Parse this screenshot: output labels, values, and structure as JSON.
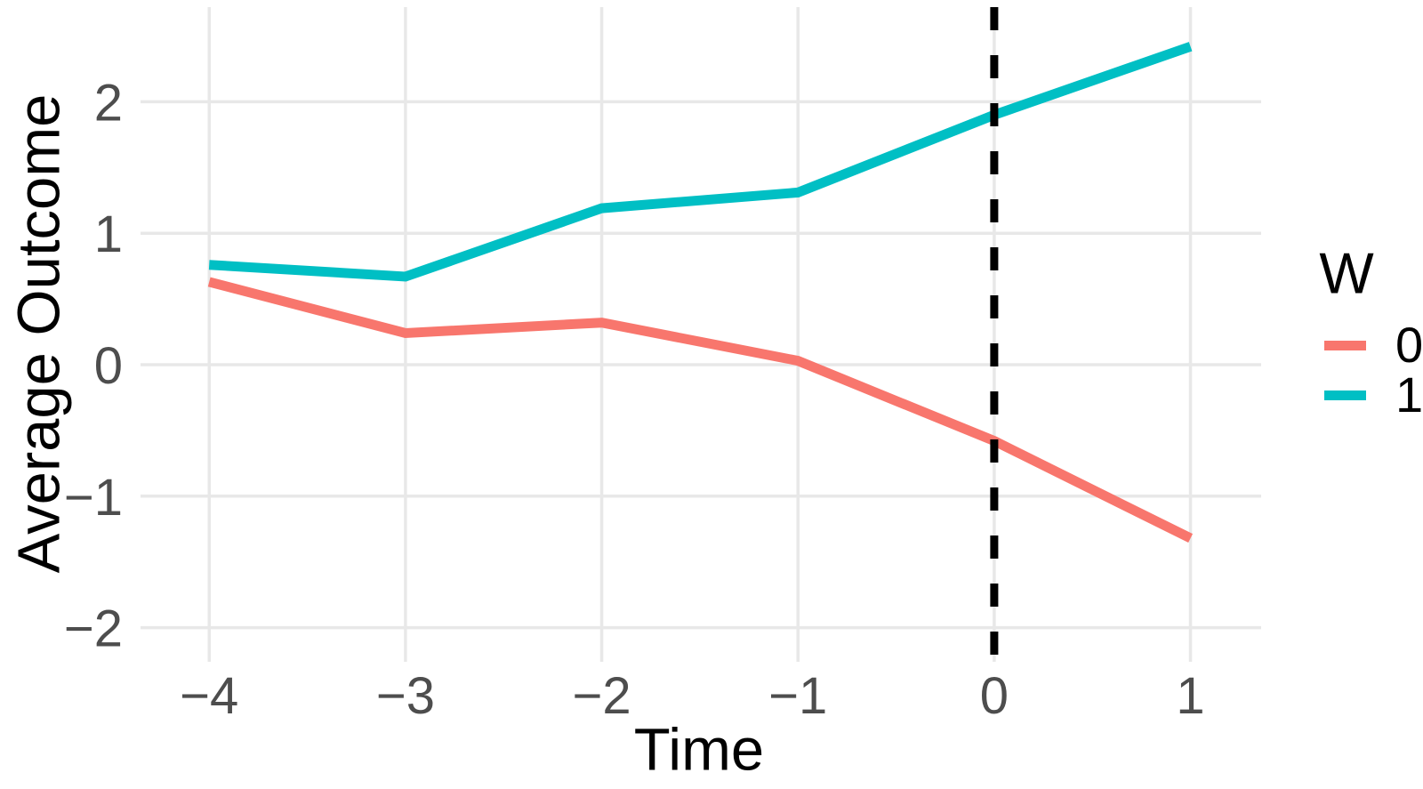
{
  "figure": {
    "background": "#FFFFFF",
    "legend": {
      "title": "W",
      "items": [
        {
          "label": "0",
          "color": "#F8766D"
        },
        {
          "label": "1",
          "color": "#00BFC4"
        }
      ]
    }
  },
  "chart_data": {
    "type": "line",
    "title": "",
    "xlabel": "Time",
    "ylabel": "Average Outcome",
    "x": [
      -4,
      -3,
      -2,
      -1,
      0,
      1
    ],
    "x_tick_labels": [
      "−4",
      "−3",
      "−2",
      "−1",
      "0",
      "1"
    ],
    "y_tick_values": [
      2,
      1,
      0,
      -1,
      -2
    ],
    "y_tick_labels": [
      "2",
      "1",
      "0",
      "−1",
      "−2"
    ],
    "xlim": [
      -4.35,
      1.36
    ],
    "ylim": [
      -2.26,
      2.72
    ],
    "grid": "major-only",
    "legend_position": "right",
    "series": [
      {
        "name": "0",
        "color": "#F8766D",
        "values": [
          0.63,
          0.24,
          0.32,
          0.03,
          -0.58,
          -1.32
        ]
      },
      {
        "name": "1",
        "color": "#00BFC4",
        "values": [
          0.76,
          0.67,
          1.19,
          1.31,
          1.9,
          2.42
        ]
      }
    ],
    "vline": {
      "x": 0,
      "linetype": "dashed",
      "color": "#000000"
    },
    "colors": {
      "grid": "#E8E8E8",
      "tick_text": "#4D4D4D",
      "axis_title_text": "#000000",
      "background": "#FFFFFF"
    }
  }
}
